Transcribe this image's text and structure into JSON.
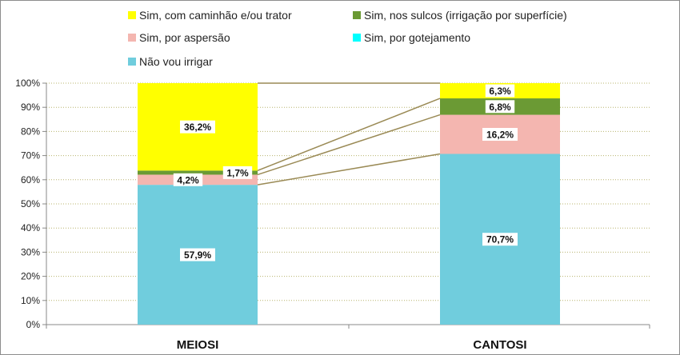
{
  "chart_data": {
    "type": "bar",
    "stacked": true,
    "categories": [
      "MEIOSI",
      "CANTOSI"
    ],
    "series": [
      {
        "name": "Não vou irrigar",
        "values": [
          57.9,
          70.7
        ],
        "labels": [
          "57,9%",
          "70,7%"
        ],
        "color": "#70CDDD"
      },
      {
        "name": "Sim, por gotejamento",
        "values": [
          0.0,
          0.0
        ],
        "labels": [
          "",
          ""
        ],
        "color": "#00FFFF"
      },
      {
        "name": "Sim, por aspersão",
        "values": [
          4.2,
          16.2
        ],
        "labels": [
          "4,2%",
          "16,2%"
        ],
        "color": "#F4B6B0"
      },
      {
        "name": "Sim, nos sulcos (irrigação por superfície)",
        "values": [
          1.7,
          6.8
        ],
        "labels": [
          "1,7%",
          "6,8%"
        ],
        "color": "#6B9A34"
      },
      {
        "name": "Sim, com caminhão e/ou trator",
        "values": [
          36.2,
          6.3
        ],
        "labels": [
          "36,2%",
          "6,3%"
        ],
        "color": "#FFFF00"
      }
    ],
    "legend_order": [
      4,
      3,
      2,
      1,
      0
    ],
    "yticks": [
      "0%",
      "10%",
      "20%",
      "30%",
      "40%",
      "50%",
      "60%",
      "70%",
      "80%",
      "90%",
      "100%"
    ],
    "ylim": [
      0,
      100
    ],
    "grid": true,
    "legend_position": "top",
    "series_lines": true
  }
}
